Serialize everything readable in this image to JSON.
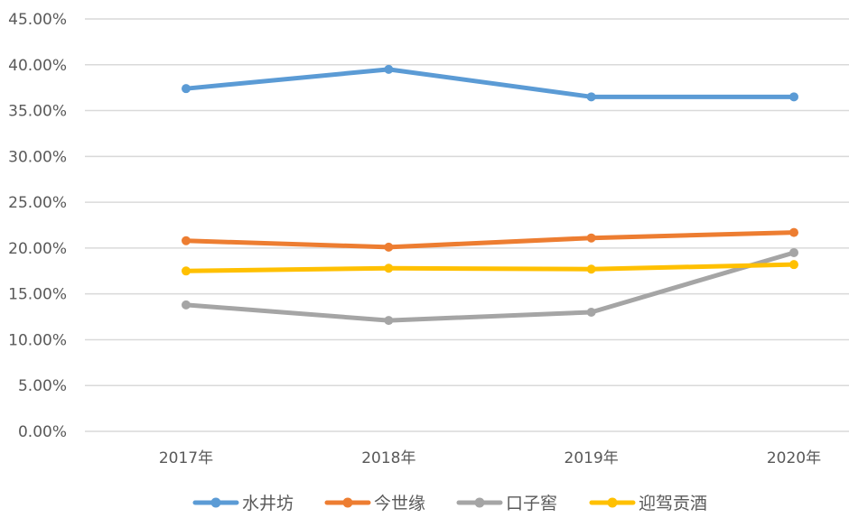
{
  "chart_data": {
    "type": "line",
    "title": "",
    "xlabel": "",
    "ylabel": "",
    "categories": [
      "2017年",
      "2018年",
      "2019年",
      "2020年"
    ],
    "ylim": [
      0,
      45
    ],
    "yticks": [
      "0.00%",
      "5.00%",
      "10.00%",
      "15.00%",
      "20.00%",
      "25.00%",
      "30.00%",
      "35.00%",
      "40.00%",
      "45.00%"
    ],
    "y_tick_values": [
      0,
      5,
      10,
      15,
      20,
      25,
      30,
      35,
      40,
      45
    ],
    "grid": true,
    "legend_position": "bottom",
    "series": [
      {
        "name": "水井坊",
        "color": "#5B9BD5",
        "values": [
          37.4,
          39.5,
          36.5,
          36.5
        ]
      },
      {
        "name": "今世缘",
        "color": "#ED7D31",
        "values": [
          20.8,
          20.1,
          21.1,
          21.7
        ]
      },
      {
        "name": "口子窖",
        "color": "#A5A5A5",
        "values": [
          13.8,
          12.1,
          13.0,
          19.5
        ]
      },
      {
        "name": "迎驾贡酒",
        "color": "#FFC000",
        "values": [
          17.5,
          17.8,
          17.7,
          18.2
        ]
      }
    ]
  }
}
